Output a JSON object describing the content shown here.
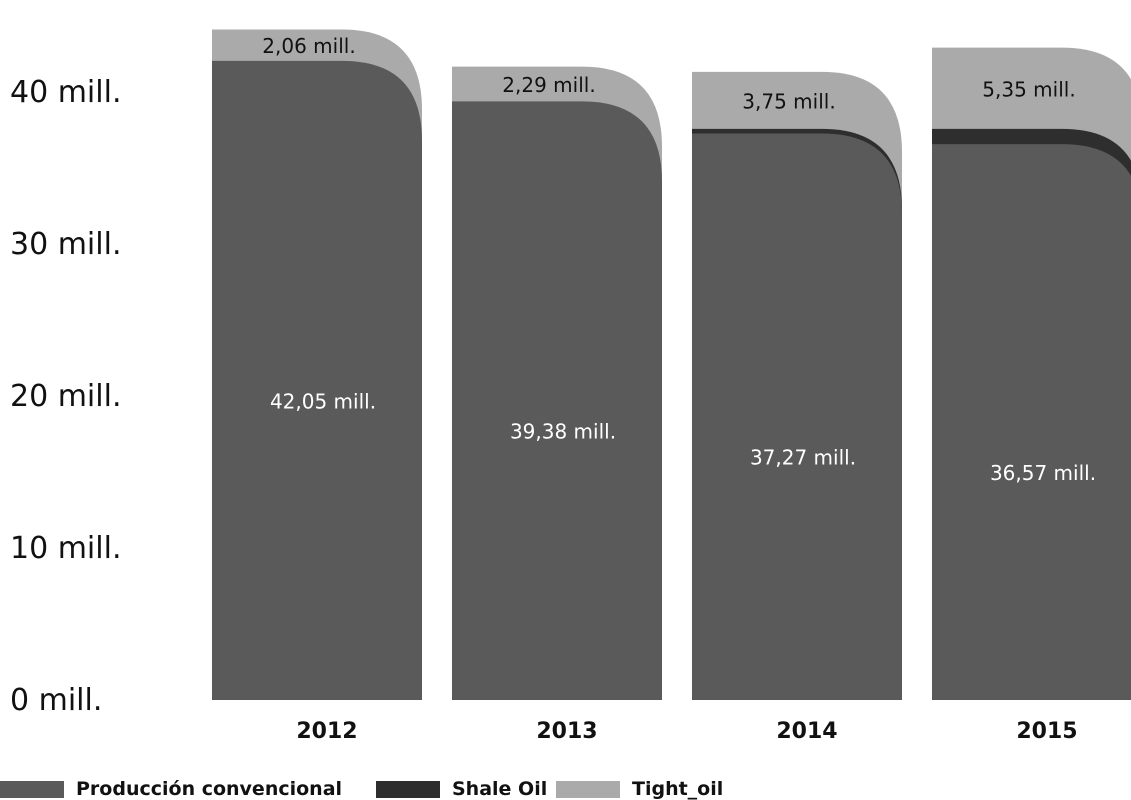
{
  "chart_data": {
    "type": "bar",
    "stacked": true,
    "categories": [
      "2012",
      "2013",
      "2014",
      "2015"
    ],
    "series": [
      {
        "name": "Producción convencional",
        "color": "#5a5a5a",
        "values": [
          42.05,
          39.38,
          37.27,
          36.57
        ],
        "labels": [
          "42,05 mill.",
          "39,38 mill.",
          "37,27 mill.",
          "36,57 mill."
        ]
      },
      {
        "name": "Shale Oil",
        "color": "#2e2e2e",
        "values": [
          0,
          0,
          0.3,
          1.0
        ],
        "labels": [
          "",
          "",
          "",
          ""
        ]
      },
      {
        "name": "Tight_oil",
        "color": "#aaaaaa",
        "values": [
          2.06,
          2.29,
          3.75,
          5.35
        ],
        "labels": [
          "2,06 mill.",
          "2,29 mill.",
          "3,75 mill.",
          "5,35 mill."
        ]
      }
    ],
    "yticks": [
      {
        "value": 0,
        "label": "0 mill."
      },
      {
        "value": 10,
        "label": "10 mill."
      },
      {
        "value": 20,
        "label": "20 mill."
      },
      {
        "value": 30,
        "label": "30 mill."
      },
      {
        "value": 40,
        "label": "40 mill."
      }
    ],
    "ylim": [
      0,
      45
    ],
    "grid": false,
    "legend_position": "bottom-left"
  }
}
